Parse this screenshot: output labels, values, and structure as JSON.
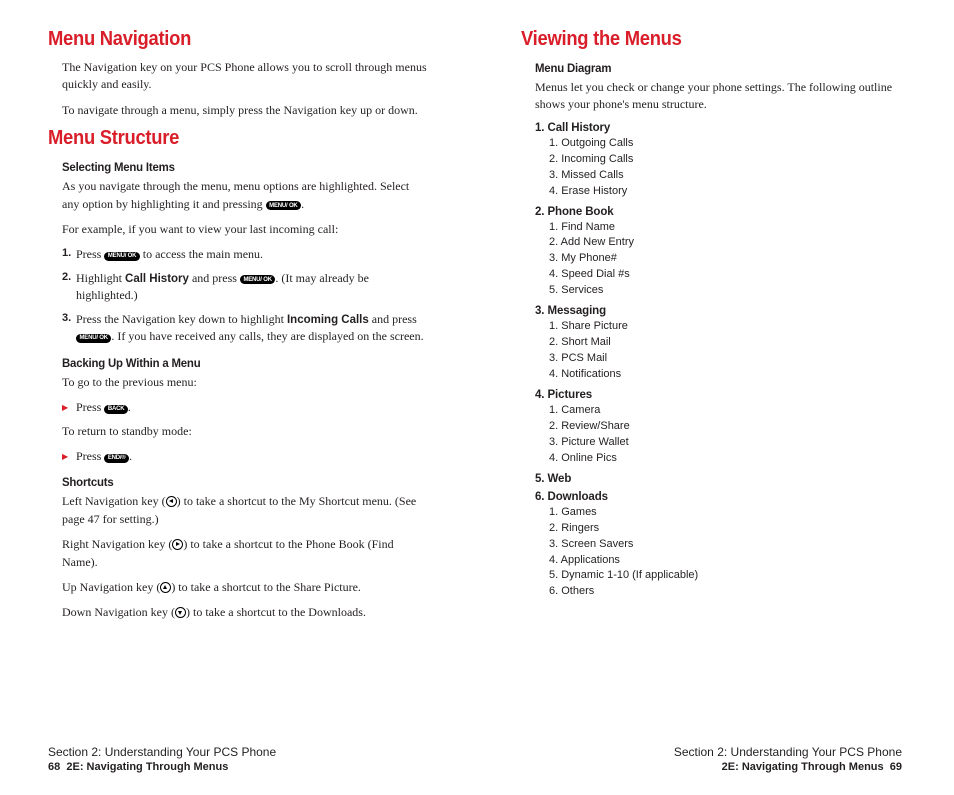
{
  "left": {
    "h1a": "Menu Navigation",
    "p1": "The Navigation key on your PCS Phone allows you to scroll through menus quickly and easily.",
    "p2": "To navigate through a menu, simply press the Navigation key up or down.",
    "h1b": "Menu Structure",
    "sub1": "Selecting Menu Items",
    "p3a": "As you navigate through the menu, menu options are highlighted. Select any option by highlighting it and pressing ",
    "p3b": ".",
    "p4": "For example, if you want to view your last incoming call:",
    "s1a": "Press ",
    "s1b": " to access the main menu.",
    "s2a": "Highlight ",
    "s2b": "Call History",
    "s2c": " and press ",
    "s2d": ". (It may already be highlighted.)",
    "s3a": "Press the Navigation key down to highlight ",
    "s3b": "Incoming Calls",
    "s3c": " and press ",
    "s3d": ". If you have received any calls, they are displayed on the screen.",
    "sub2": "Backing Up Within a Menu",
    "p5": "To go to the previous menu:",
    "b1a": "Press ",
    "b1b": ".",
    "p6": "To return to standby mode:",
    "b2a": "Press ",
    "b2b": ".",
    "sub3": "Shortcuts",
    "sc1a": "Left Navigation key (",
    "sc1b": ") to take a shortcut to the My Shortcut menu. (See page 47 for setting.)",
    "sc2a": "Right Navigation key (",
    "sc2b": ") to take a shortcut to the Phone Book (Find Name).",
    "sc3a": "Up Navigation key (",
    "sc3b": ") to take a shortcut to the Share Picture.",
    "sc4a": "Down Navigation key (",
    "sc4b": ") to take a shortcut to the Downloads.",
    "footer_section": "Section 2: Understanding Your PCS Phone",
    "footer_page": "68",
    "footer_chapter": "2E: Navigating Through Menus"
  },
  "right": {
    "h1": "Viewing the Menus",
    "sub1": "Menu Diagram",
    "p1": "Menus let you check or change your phone settings. The following outline shows your phone's menu structure.",
    "menus": [
      {
        "title": "1. Call History",
        "items": [
          "1. Outgoing Calls",
          "2. Incoming Calls",
          "3. Missed Calls",
          "4. Erase History"
        ]
      },
      {
        "title": "2. Phone Book",
        "items": [
          "1. Find Name",
          "2. Add New Entry",
          "3. My Phone#",
          "4. Speed Dial #s",
          "5. Services"
        ]
      },
      {
        "title": "3. Messaging",
        "items": [
          "1. Share Picture",
          "2. Short Mail",
          "3. PCS Mail",
          "4. Notifications"
        ]
      },
      {
        "title": "4. Pictures",
        "items": [
          "1. Camera",
          "2. Review/Share",
          "3. Picture Wallet",
          "4. Online Pics"
        ]
      },
      {
        "title": "5. Web",
        "items": []
      },
      {
        "title": "6. Downloads",
        "items": [
          "1. Games",
          "2. Ringers",
          "3. Screen Savers",
          "4. Applications",
          "5. Dynamic 1-10 (If applicable)",
          "6. Others"
        ]
      }
    ],
    "footer_section": "Section 2: Understanding Your PCS Phone",
    "footer_chapter": "2E: Navigating Through Menus",
    "footer_page": "69"
  },
  "keys": {
    "menu_ok": "MENU/\nOK",
    "back": "BACK",
    "end": "END/®"
  }
}
